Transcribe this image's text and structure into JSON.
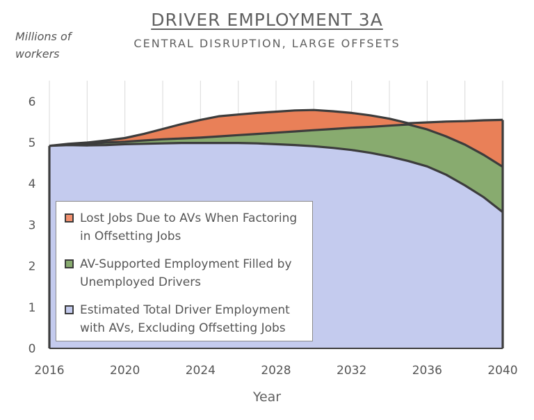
{
  "chart_data": {
    "type": "area",
    "title": "DRIVER EMPLOYMENT 3A",
    "subtitle": "CENTRAL DISRUPTION, LARGE OFFSETS",
    "ylabel": "Millions of workers",
    "xlabel": "Year",
    "xlim": [
      2016,
      2040
    ],
    "ylim": [
      0,
      6.5
    ],
    "x_ticks": [
      "2016",
      "2020",
      "2024",
      "2028",
      "2032",
      "2036",
      "2040"
    ],
    "y_ticks": [
      "0",
      "1",
      "2",
      "3",
      "4",
      "5",
      "6"
    ],
    "grid": "vertical",
    "legend_position": "bottom-left inside",
    "x": [
      2016,
      2017,
      2018,
      2019,
      2020,
      2021,
      2022,
      2023,
      2024,
      2025,
      2026,
      2027,
      2028,
      2029,
      2030,
      2031,
      2032,
      2033,
      2034,
      2035,
      2036,
      2037,
      2038,
      2039,
      2040
    ],
    "series": [
      {
        "name": "Estimated Total Driver Employment with AVs, Excluding Offsetting Jobs",
        "color": "#c4cbee",
        "values": [
          4.92,
          4.94,
          4.93,
          4.94,
          4.96,
          4.97,
          4.98,
          4.99,
          4.99,
          4.99,
          4.99,
          4.98,
          4.96,
          4.94,
          4.91,
          4.87,
          4.82,
          4.75,
          4.66,
          4.55,
          4.42,
          4.22,
          3.96,
          3.67,
          3.31
        ]
      },
      {
        "name": "AV-Supported Employment Filled by Unemployed Drivers",
        "color": "#88ab6f",
        "values": [
          4.92,
          4.95,
          4.97,
          5.0,
          5.02,
          5.05,
          5.08,
          5.1,
          5.12,
          5.15,
          5.18,
          5.21,
          5.24,
          5.27,
          5.3,
          5.33,
          5.36,
          5.38,
          5.41,
          5.44,
          5.32,
          5.15,
          4.95,
          4.7,
          4.41
        ]
      },
      {
        "name": "Lost Jobs Due to AVs When Factoring in Offsetting Jobs",
        "color": "#f2906e",
        "values": [
          4.92,
          4.97,
          5.0,
          5.05,
          5.11,
          5.21,
          5.33,
          5.45,
          5.55,
          5.64,
          5.68,
          5.72,
          5.75,
          5.78,
          5.79,
          5.76,
          5.72,
          5.66,
          5.58,
          5.47,
          5.49,
          5.51,
          5.52,
          5.54,
          5.55
        ]
      }
    ],
    "legend_order": [
      "Lost Jobs Due to AVs When Factoring in Offsetting Jobs",
      "AV-Supported Employment Filled by Unemployed Drivers",
      "Estimated Total Driver Employment with AVs, Excluding Offsetting Jobs"
    ],
    "fill_colors": {
      "lost": "#e98058",
      "av": "#88ab6f",
      "total": "#c4cbee"
    },
    "legend_items": [
      {
        "label_line1": "Lost Jobs Due to AVs When Factoring",
        "label_line2": "in Offsetting Jobs",
        "color": "#f2906e"
      },
      {
        "label_line1": "AV-Supported Employment Filled by",
        "label_line2": "Unemployed Drivers",
        "color": "#88ab6f"
      },
      {
        "label_line1": "Estimated Total Driver Employment",
        "label_line2": "with AVs, Excluding Offsetting Jobs",
        "color": "#c4cbee"
      }
    ]
  }
}
